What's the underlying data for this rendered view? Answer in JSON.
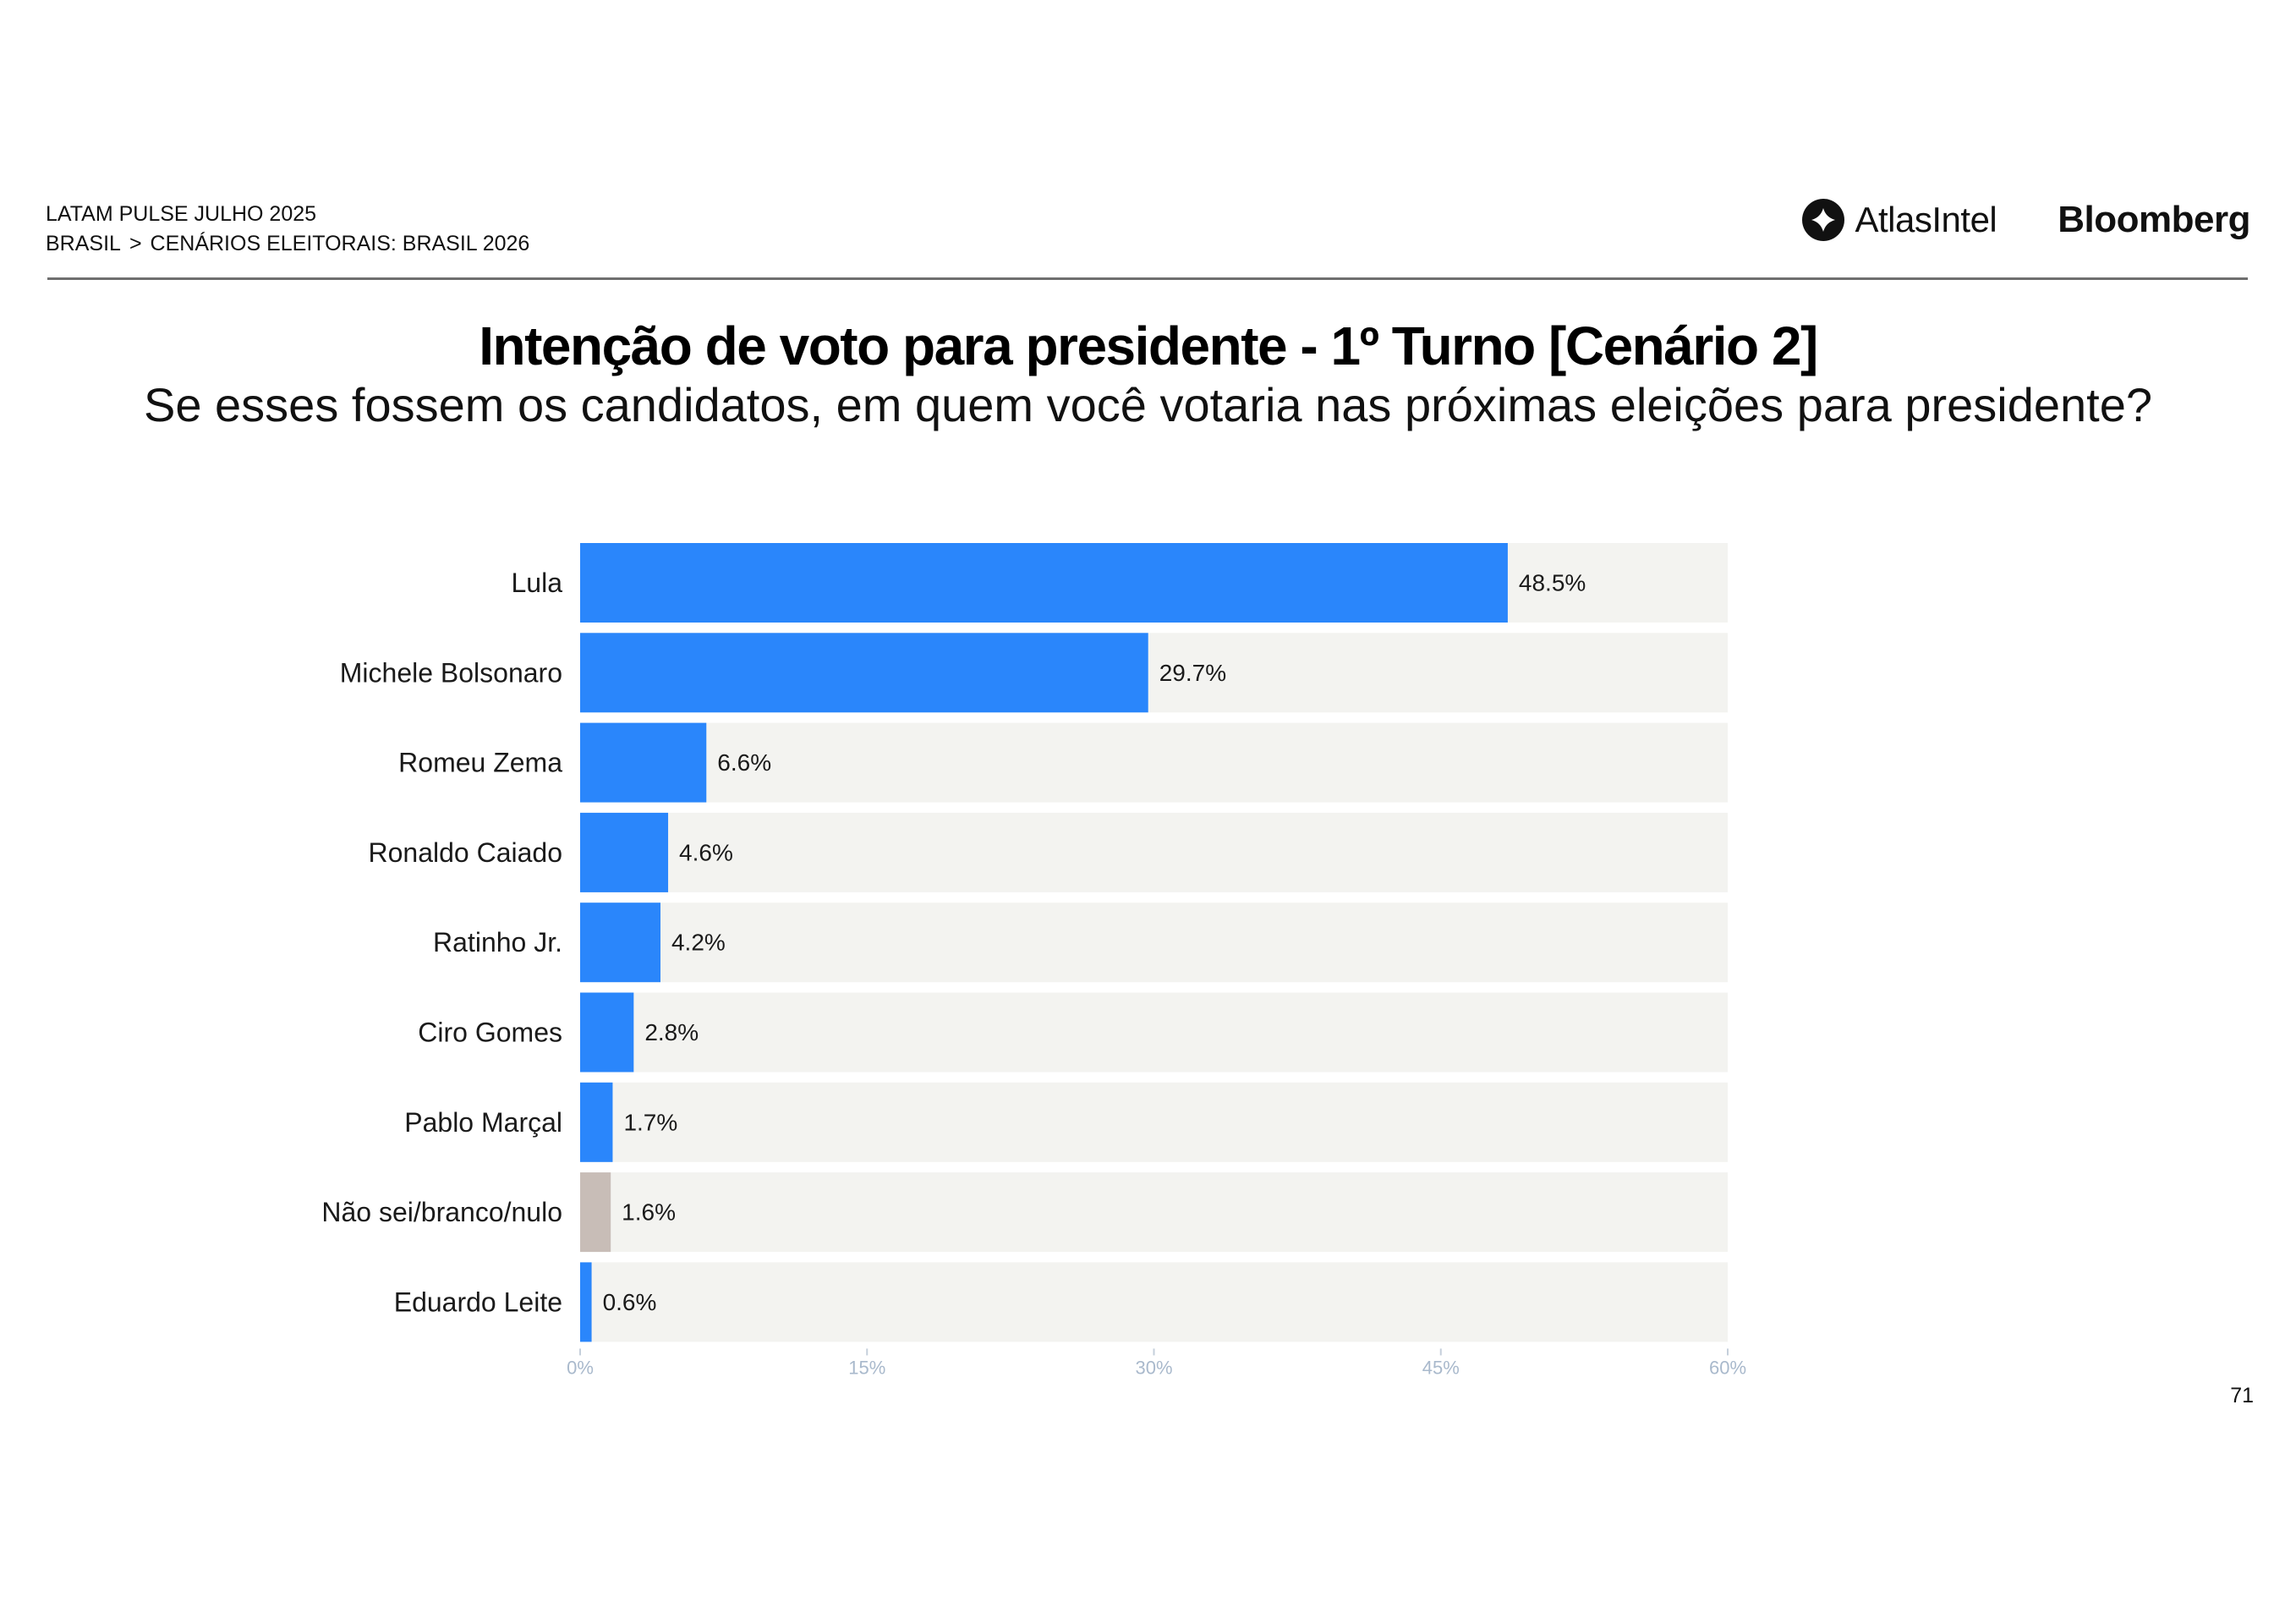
{
  "header": {
    "report": "LATAM PULSE JULHO 2025",
    "breadcrumb": [
      "BRASIL",
      "CENÁRIOS ELEITORAIS: BRASIL 2026"
    ],
    "breadcrumb_separator": ">",
    "logos": {
      "atlas": "AtlasIntel",
      "bloomberg": "Bloomberg"
    }
  },
  "page_number": "71",
  "colors": {
    "bar": "#2a86fb",
    "undecided": "#c8bdb7",
    "track": "#f3f3f0",
    "tick_text": "#a9b9cc"
  },
  "chart_data": {
    "type": "bar",
    "orientation": "horizontal",
    "title": "Intenção de voto para presidente - 1º Turno [Cenário 2]",
    "subtitle": "Se esses fossem os candidatos, em quem você votaria nas próximas eleições para presidente?",
    "categories": [
      "Lula",
      "Michele Bolsonaro",
      "Romeu Zema",
      "Ronaldo Caiado",
      "Ratinho Jr.",
      "Ciro Gomes",
      "Pablo Marçal",
      "Não sei/branco/nulo",
      "Eduardo Leite"
    ],
    "values": [
      48.5,
      29.7,
      6.6,
      4.6,
      4.2,
      2.8,
      1.7,
      1.6,
      0.6
    ],
    "data_labels": [
      "48.5%",
      "29.7%",
      "6.6%",
      "4.6%",
      "4.2%",
      "2.8%",
      "1.7%",
      "1.6%",
      "0.6%"
    ],
    "highlight_category": "Não sei/branco/nulo",
    "xlim": [
      0,
      60
    ],
    "xticks": [
      0,
      15,
      30,
      45,
      60
    ],
    "xtick_labels": [
      "0%",
      "15%",
      "30%",
      "45%",
      "60%"
    ],
    "grid": false,
    "legend": "none"
  }
}
